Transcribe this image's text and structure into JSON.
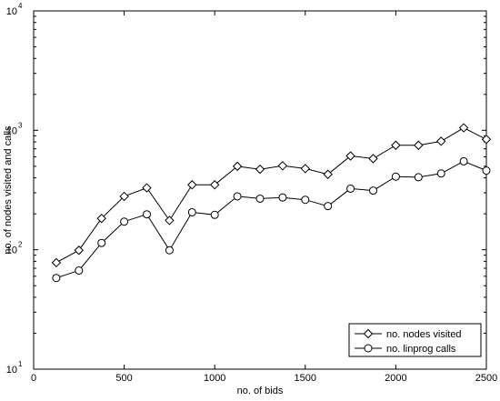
{
  "chart_data": {
    "type": "line",
    "xlabel": "no. of bids",
    "ylabel": "no. of nodes visited and calls",
    "xlim": [
      0,
      2500
    ],
    "ylim": [
      10,
      10000
    ],
    "yscale": "log",
    "grid": false,
    "legend_position": "bottom-right",
    "x_ticks": [
      0,
      500,
      1000,
      1500,
      2000,
      2500
    ],
    "x_tick_labels": [
      "0",
      "500",
      "1000",
      "1500",
      "2000",
      "2500"
    ],
    "y_ticks": [
      10,
      100,
      1000,
      10000
    ],
    "y_tick_labels": [
      {
        "base": "10",
        "exp": "1"
      },
      {
        "base": "10",
        "exp": "2"
      },
      {
        "base": "10",
        "exp": "3"
      },
      {
        "base": "10",
        "exp": "4"
      }
    ],
    "x": [
      125,
      250,
      375,
      500,
      625,
      750,
      875,
      1000,
      1125,
      1250,
      1375,
      1500,
      1625,
      1750,
      1875,
      2000,
      2125,
      2250,
      2375,
      2500
    ],
    "series": [
      {
        "name": "no. nodes visited",
        "marker": "diamond",
        "values": [
          78,
          99,
          183,
          280,
          330,
          176,
          350,
          350,
          500,
          472,
          505,
          478,
          428,
          610,
          580,
          750,
          750,
          810,
          1050,
          840
        ]
      },
      {
        "name": "no. linprog calls",
        "marker": "circle",
        "values": [
          58,
          67,
          114,
          172,
          198,
          99,
          206,
          196,
          280,
          268,
          274,
          262,
          232,
          325,
          313,
          410,
          405,
          435,
          550,
          460
        ]
      }
    ]
  }
}
